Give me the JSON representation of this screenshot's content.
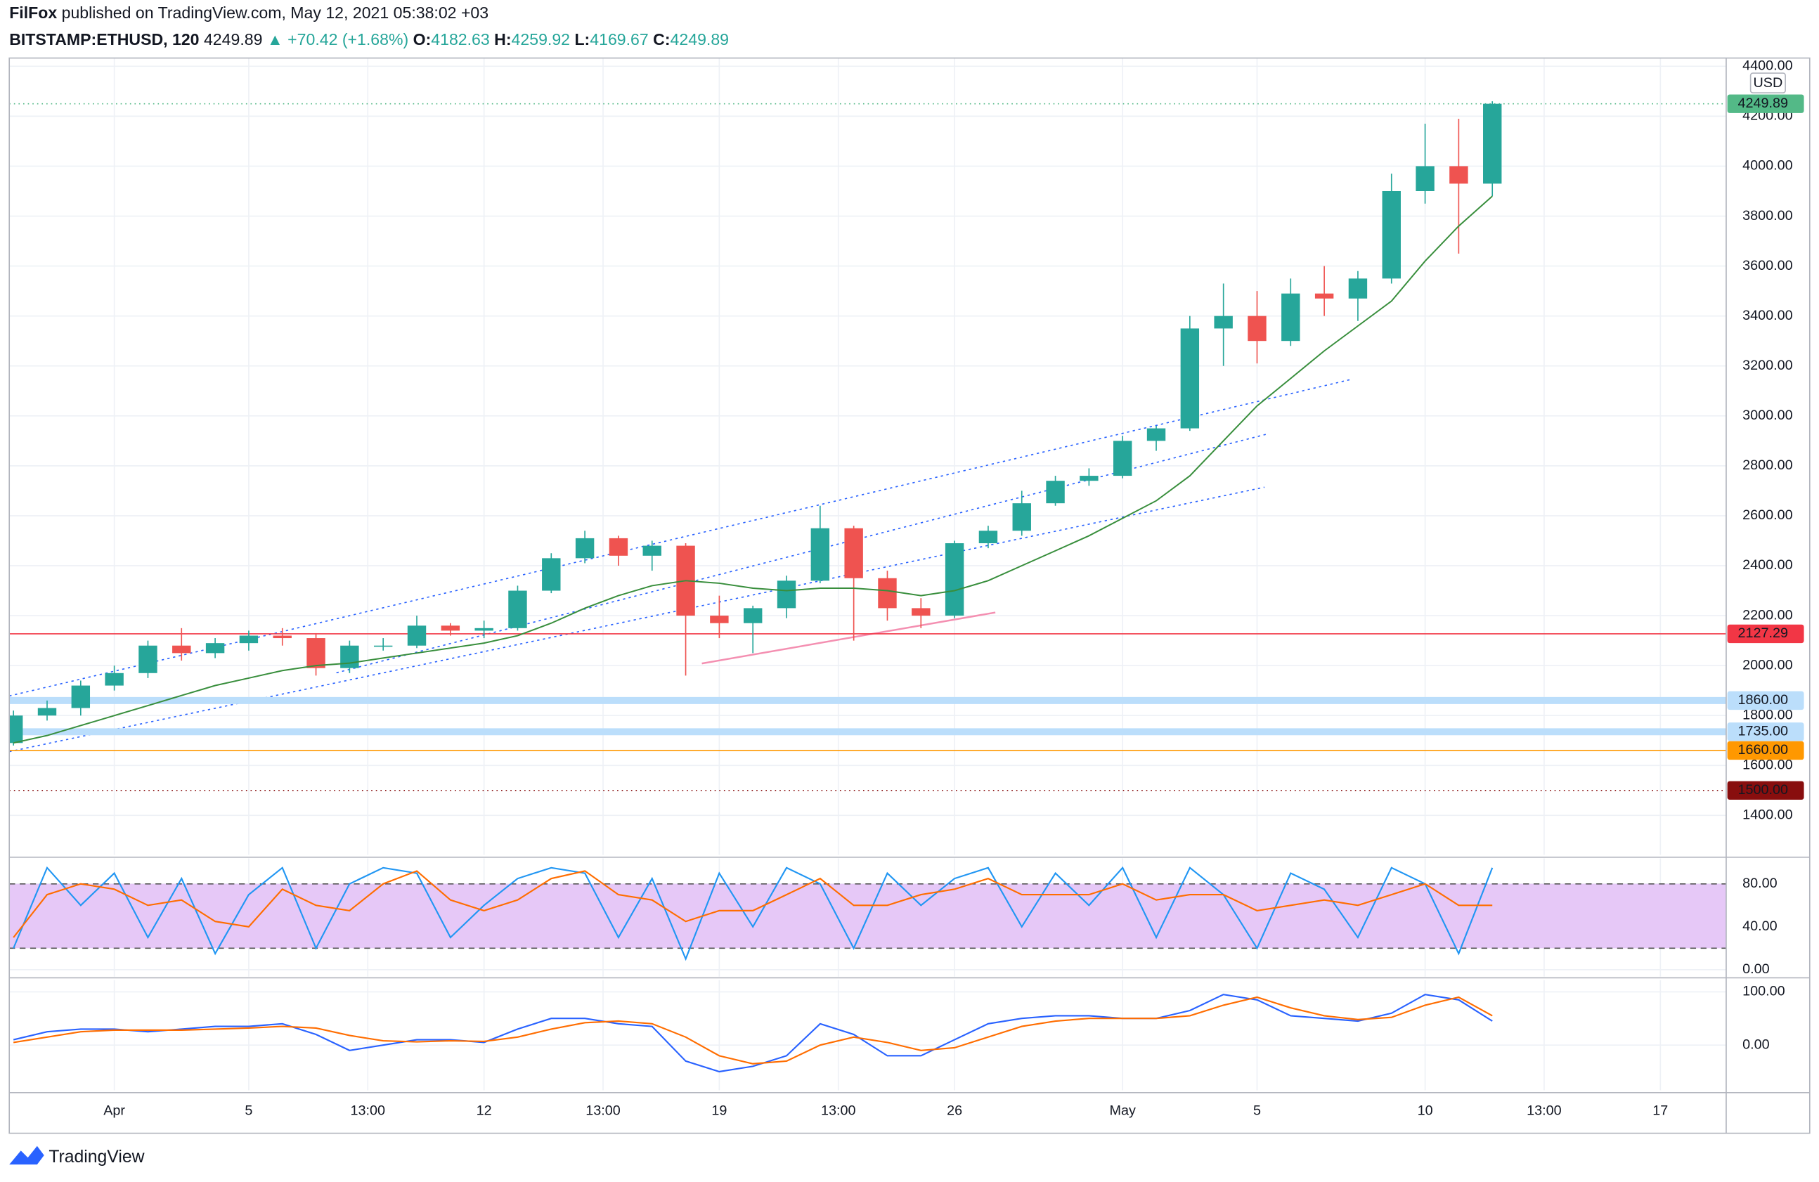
{
  "header": {
    "author": "FilFox",
    "published": "published on TradingView.com, May 12, 2021 05:38:02 +03",
    "symbol": "BITSTAMP:ETHUSD, 120",
    "last": "4249.89",
    "change_arrow": "▲",
    "change": "+70.42 (+1.68%)",
    "o_label": "O:",
    "o": "4182.63",
    "h_label": "H:",
    "h": "4259.92",
    "l_label": "L:",
    "l": "4169.67",
    "c_label": "C:",
    "c": "4249.89",
    "currency": "USD"
  },
  "footer": {
    "brand": "TradingView"
  },
  "chart_data": {
    "type": "candlestick",
    "xlim": [
      "2021-03-28 21:00",
      "2021-05-18 23:00"
    ],
    "xticks": [
      {
        "value": "2021-04-01",
        "label": "Apr"
      },
      {
        "value": "2021-04-05",
        "label": "5"
      },
      {
        "value": "2021-04-08 13:00",
        "label": "13:00"
      },
      {
        "value": "2021-04-12",
        "label": "12"
      },
      {
        "value": "2021-04-15 13:00",
        "label": "13:00"
      },
      {
        "value": "2021-04-19",
        "label": "19"
      },
      {
        "value": "2021-04-22 13:00",
        "label": "13:00"
      },
      {
        "value": "2021-04-26",
        "label": "26"
      },
      {
        "value": "2021-05-01",
        "label": "May"
      },
      {
        "value": "2021-05-05",
        "label": "5"
      },
      {
        "value": "2021-05-10",
        "label": "10"
      },
      {
        "value": "2021-05-13 13:00",
        "label": "13:00"
      },
      {
        "value": "2021-05-17",
        "label": "17"
      }
    ],
    "ylim": [
      1242,
      4433
    ],
    "yticks": [
      {
        "value": 1400,
        "label": "1400.00"
      },
      {
        "value": 1600,
        "label": "1600.00"
      },
      {
        "value": 1800,
        "label": "1800.00"
      },
      {
        "value": 2000,
        "label": "2000.00"
      },
      {
        "value": 2200,
        "label": "2200.00"
      },
      {
        "value": 2400,
        "label": "2400.00"
      },
      {
        "value": 2600,
        "label": "2600.00"
      },
      {
        "value": 2800,
        "label": "2800.00"
      },
      {
        "value": 3000,
        "label": "3000.00"
      },
      {
        "value": 3200,
        "label": "3200.00"
      },
      {
        "value": 3400,
        "label": "3400.00"
      },
      {
        "value": 3600,
        "label": "3600.00"
      },
      {
        "value": 3800,
        "label": "3800.00"
      },
      {
        "value": 4000,
        "label": "4000.00"
      },
      {
        "value": 4200,
        "label": "4200.00"
      },
      {
        "value": 4400,
        "label": "4400.00"
      }
    ],
    "grid": true,
    "up_color": "#26a69a",
    "down_color": "#ef5350",
    "x": [
      "2021-03-29",
      "2021-03-30",
      "2021-03-31",
      "2021-04-01",
      "2021-04-02",
      "2021-04-03",
      "2021-04-04",
      "2021-04-05",
      "2021-04-06",
      "2021-04-07",
      "2021-04-08",
      "2021-04-09",
      "2021-04-10",
      "2021-04-11",
      "2021-04-12",
      "2021-04-13",
      "2021-04-14",
      "2021-04-15",
      "2021-04-16",
      "2021-04-17",
      "2021-04-18",
      "2021-04-19",
      "2021-04-20",
      "2021-04-21",
      "2021-04-22",
      "2021-04-23",
      "2021-04-24",
      "2021-04-25",
      "2021-04-26",
      "2021-04-27",
      "2021-04-28",
      "2021-04-29",
      "2021-04-30",
      "2021-05-01",
      "2021-05-02",
      "2021-05-03",
      "2021-05-04",
      "2021-05-05",
      "2021-05-06",
      "2021-05-07",
      "2021-05-08",
      "2021-05-09",
      "2021-05-10",
      "2021-05-11",
      "2021-05-12"
    ],
    "open": [
      1690,
      1800,
      1830,
      1920,
      1970,
      2080,
      2050,
      2090,
      2120,
      2110,
      1990,
      2080,
      2080,
      2160,
      2140,
      2150,
      2300,
      2430,
      2510,
      2440,
      2480,
      2200,
      2170,
      2230,
      2340,
      2550,
      2350,
      2230,
      2200,
      2490,
      2540,
      2650,
      2740,
      2760,
      2900,
      2950,
      3350,
      3400,
      3300,
      3490,
      3470,
      3550,
      3900,
      4000,
      3930
    ],
    "high": [
      1820,
      1860,
      1940,
      2000,
      2100,
      2150,
      2110,
      2140,
      2150,
      2130,
      2100,
      2110,
      2200,
      2170,
      2180,
      2320,
      2450,
      2540,
      2520,
      2500,
      2490,
      2280,
      2240,
      2360,
      2640,
      2560,
      2380,
      2270,
      2500,
      2560,
      2700,
      2760,
      2790,
      2920,
      2960,
      3400,
      3530,
      3500,
      3550,
      3600,
      3580,
      3970,
      4170,
      4190,
      4259.92
    ],
    "low": [
      1680,
      1780,
      1800,
      1900,
      1950,
      2020,
      2030,
      2060,
      2080,
      1960,
      1970,
      2060,
      2070,
      2120,
      2110,
      2140,
      2290,
      2410,
      2400,
      2380,
      1960,
      2110,
      2050,
      2190,
      2330,
      2100,
      2180,
      2150,
      2190,
      2470,
      2520,
      2640,
      2720,
      2750,
      2860,
      2940,
      3200,
      3210,
      3280,
      3400,
      3380,
      3530,
      3850,
      3650,
      3880
    ],
    "close": [
      1800,
      1830,
      1920,
      1970,
      2080,
      2050,
      2090,
      2120,
      2110,
      1990,
      2080,
      2080,
      2160,
      2140,
      2150,
      2300,
      2430,
      2510,
      2440,
      2480,
      2200,
      2170,
      2230,
      2340,
      2550,
      2350,
      2230,
      2200,
      2490,
      2540,
      2650,
      2740,
      2760,
      2900,
      2950,
      3350,
      3400,
      3300,
      3490,
      3470,
      3550,
      3900,
      4000,
      3930,
      4249.89
    ],
    "ma": {
      "color": "#388e3c",
      "values": [
        1690,
        1720,
        1760,
        1800,
        1840,
        1880,
        1920,
        1950,
        1980,
        2000,
        2010,
        2030,
        2050,
        2070,
        2090,
        2120,
        2170,
        2230,
        2280,
        2320,
        2340,
        2330,
        2310,
        2300,
        2310,
        2310,
        2300,
        2280,
        2300,
        2340,
        2400,
        2460,
        2520,
        2590,
        2660,
        2760,
        2900,
        3040,
        3150,
        3260,
        3360,
        3460,
        3620,
        3760,
        3880
      ]
    },
    "levels": [
      {
        "value": 4249.89,
        "label": "4249.89",
        "color": "#53b987",
        "style": "dotted"
      },
      {
        "value": 2127.29,
        "label": "2127.29",
        "color": "#f23645",
        "style": "solid"
      },
      {
        "value": 1860,
        "label": "1860.00",
        "color": "#bbdefb",
        "style": "band"
      },
      {
        "value": 1735,
        "label": "1735.00",
        "color": "#bbdefb",
        "style": "band"
      },
      {
        "value": 1660,
        "label": "1660.00",
        "color": "#ff9800",
        "style": "solid"
      },
      {
        "value": 1500,
        "label": "1500.00",
        "color": "#880e0e",
        "style": "dotted"
      }
    ],
    "indicators": [
      {
        "ylim": [
          -6.5,
          103.8
        ],
        "yticks": [
          {
            "value": 0,
            "label": "0.00"
          },
          {
            "value": 40,
            "label": "40.00"
          },
          {
            "value": 80,
            "label": "80.00"
          }
        ],
        "band": [
          20,
          80
        ],
        "band_color": "#e6c8f7",
        "series": [
          {
            "color": "#2196f3",
            "values": [
              20,
              95,
              60,
              90,
              30,
              85,
              15,
              70,
              95,
              20,
              80,
              95,
              90,
              30,
              60,
              85,
              95,
              90,
              30,
              85,
              10,
              90,
              40,
              95,
              80,
              20,
              90,
              60,
              85,
              95,
              40,
              90,
              60,
              95,
              30,
              95,
              70,
              20,
              90,
              75,
              30,
              95,
              80,
              15,
              95
            ]
          },
          {
            "color": "#ff6d00",
            "values": [
              30,
              70,
              80,
              75,
              60,
              65,
              45,
              40,
              75,
              60,
              55,
              80,
              92,
              65,
              55,
              65,
              85,
              92,
              70,
              65,
              45,
              55,
              55,
              70,
              85,
              60,
              60,
              70,
              75,
              85,
              70,
              70,
              70,
              80,
              65,
              70,
              70,
              55,
              60,
              65,
              60,
              70,
              80,
              60,
              60
            ]
          }
        ]
      },
      {
        "ylim": [
          -85,
          122
        ],
        "yticks": [
          {
            "value": 0,
            "label": "0.00"
          },
          {
            "value": 100,
            "label": "100.00"
          }
        ],
        "series": [
          {
            "color": "#2962ff",
            "values": [
              10,
              25,
              30,
              30,
              25,
              30,
              35,
              35,
              40,
              20,
              -10,
              0,
              10,
              10,
              5,
              30,
              50,
              50,
              40,
              35,
              -30,
              -50,
              -40,
              -20,
              40,
              20,
              -20,
              -20,
              10,
              40,
              50,
              55,
              55,
              50,
              50,
              65,
              95,
              85,
              55,
              50,
              45,
              60,
              95,
              85,
              45
            ]
          },
          {
            "color": "#ff6d00",
            "values": [
              5,
              15,
              25,
              28,
              28,
              28,
              30,
              32,
              35,
              32,
              18,
              8,
              6,
              8,
              7,
              15,
              30,
              42,
              45,
              40,
              15,
              -20,
              -35,
              -30,
              0,
              15,
              5,
              -10,
              -5,
              15,
              35,
              45,
              50,
              50,
              50,
              55,
              75,
              90,
              70,
              55,
              48,
              52,
              75,
              90,
              55
            ]
          }
        ]
      }
    ]
  }
}
